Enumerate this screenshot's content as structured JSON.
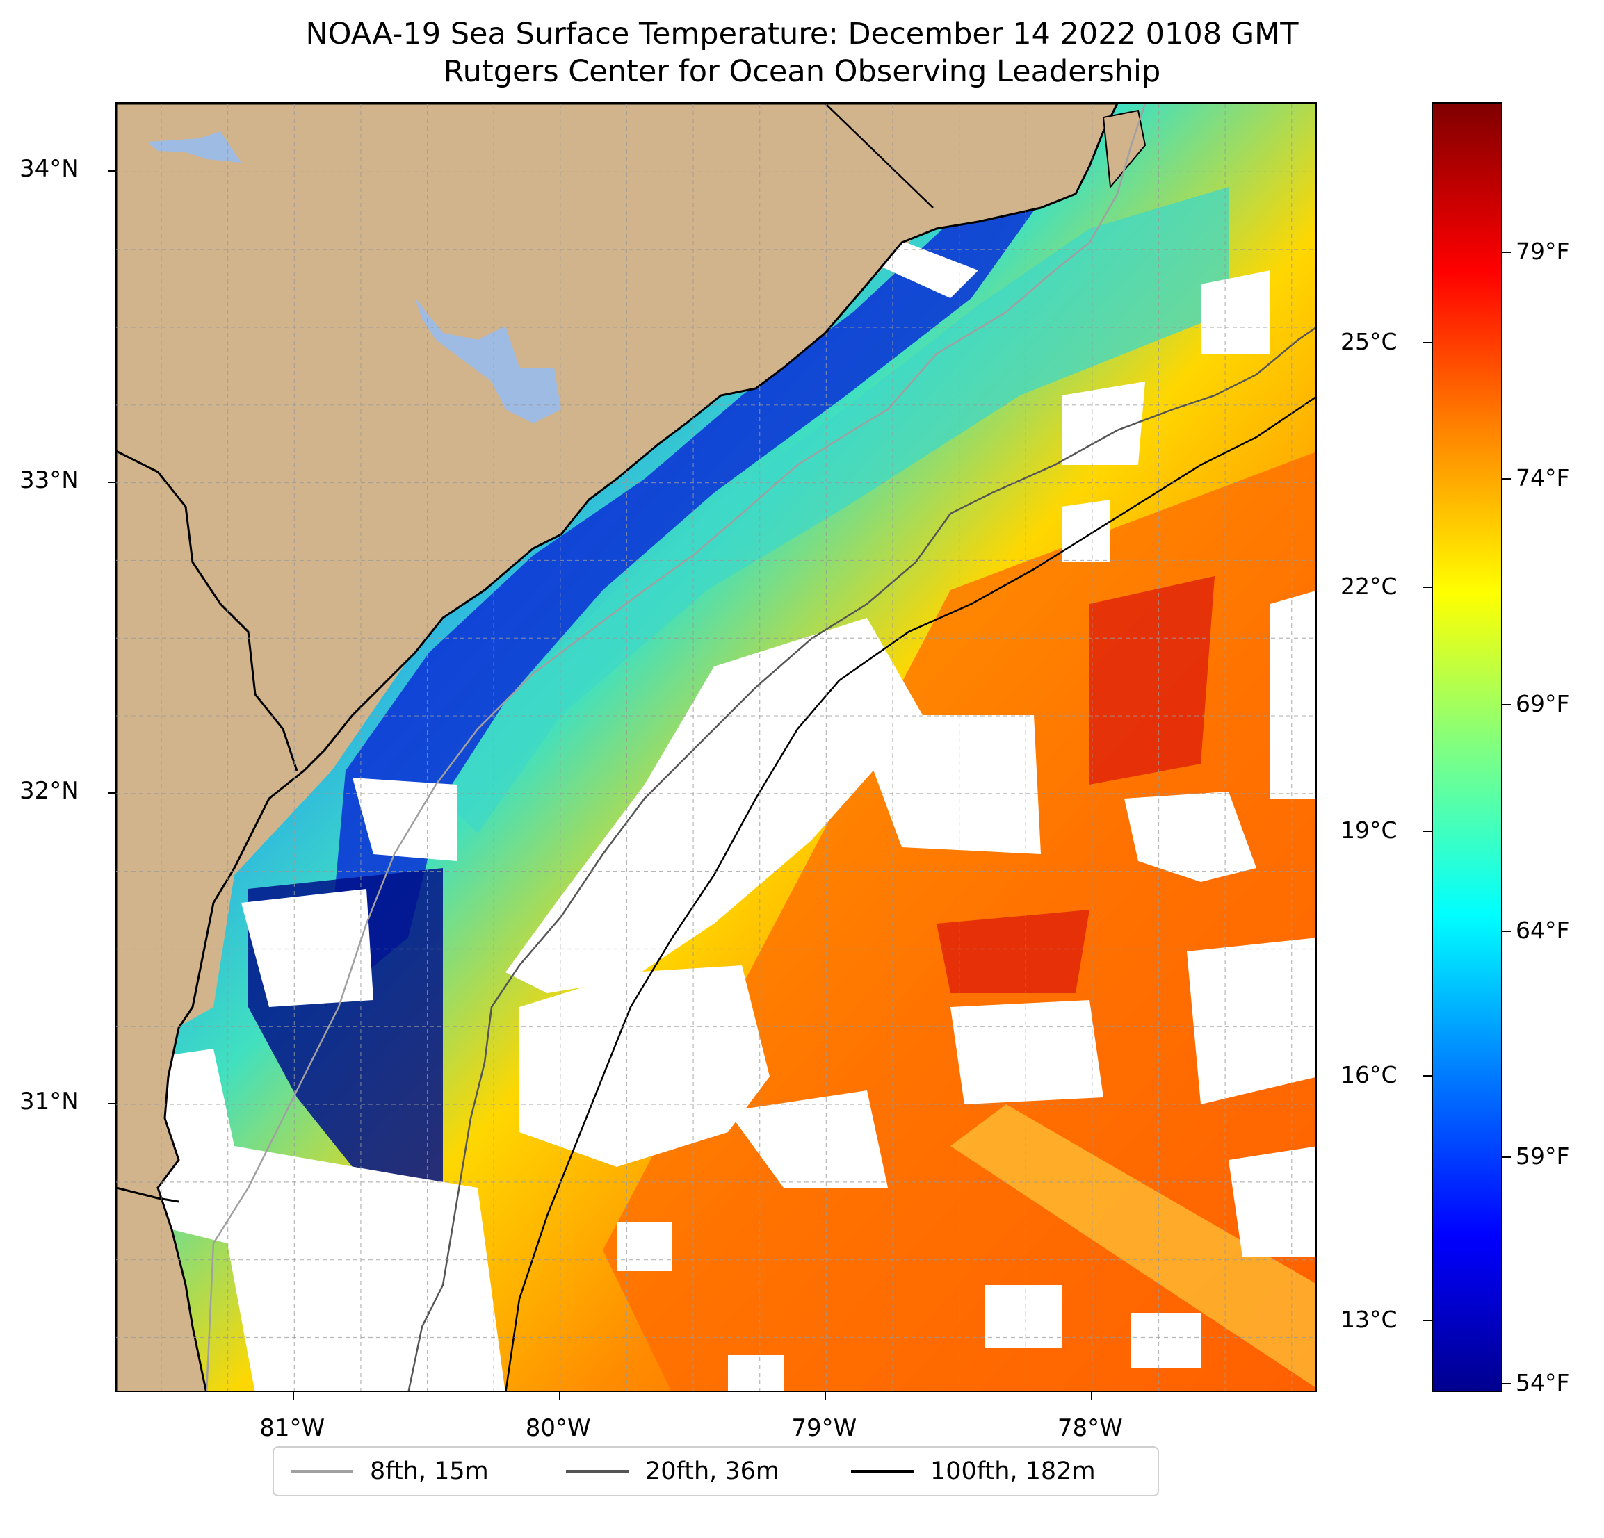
{
  "title": {
    "line1": "NOAA-19 Sea Surface Temperature: December 14 2022 0108 GMT",
    "line2": "Rutgers Center for Ocean Observing Leadership"
  },
  "map": {
    "lon_range": [
      -81.67,
      -77.15
    ],
    "lat_range": [
      30.07,
      34.22
    ],
    "lat_labels": [
      "34°N",
      "33°N",
      "32°N",
      "31°N"
    ],
    "lat_values": [
      34,
      33,
      32,
      31
    ],
    "lon_labels": [
      "81°W",
      "80°W",
      "79°W",
      "78°W"
    ],
    "lon_values": [
      -81,
      -80,
      -79,
      -78
    ],
    "colors": {
      "land": "#d2b48c",
      "lake": "#9dbbe3",
      "cloud": "#ffffff",
      "grid": "#9a9a9a"
    }
  },
  "colorbar": {
    "colormap": "jet",
    "celsius_labels": [
      "25°C",
      "22°C",
      "19°C",
      "16°C",
      "13°C"
    ],
    "celsius_values": [
      25,
      22,
      19,
      16,
      13
    ],
    "fahrenheit_labels": [
      "79°F",
      "74°F",
      "69°F",
      "64°F",
      "59°F",
      "54°F"
    ],
    "fahrenheit_values": [
      79,
      74,
      69,
      64,
      59,
      54
    ],
    "range_f": [
      53.8,
      82.3
    ]
  },
  "legend": {
    "items": [
      {
        "label": "8fth, 15m",
        "color": "#a0a0a0"
      },
      {
        "label": "20fth, 36m",
        "color": "#555555"
      },
      {
        "label": "100fth, 182m",
        "color": "#000000"
      }
    ]
  }
}
